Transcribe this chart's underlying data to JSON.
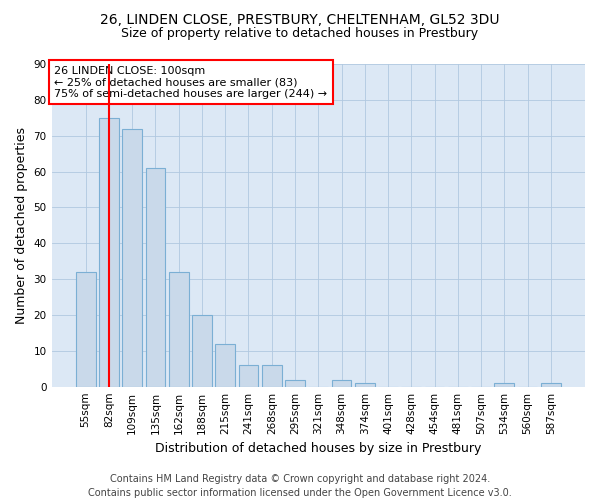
{
  "title_line1": "26, LINDEN CLOSE, PRESTBURY, CHELTENHAM, GL52 3DU",
  "title_line2": "Size of property relative to detached houses in Prestbury",
  "xlabel": "Distribution of detached houses by size in Prestbury",
  "ylabel": "Number of detached properties",
  "categories": [
    "55sqm",
    "82sqm",
    "109sqm",
    "135sqm",
    "162sqm",
    "188sqm",
    "215sqm",
    "241sqm",
    "268sqm",
    "295sqm",
    "321sqm",
    "348sqm",
    "374sqm",
    "401sqm",
    "428sqm",
    "454sqm",
    "481sqm",
    "507sqm",
    "534sqm",
    "560sqm",
    "587sqm"
  ],
  "values": [
    32,
    75,
    72,
    61,
    32,
    20,
    12,
    6,
    6,
    2,
    0,
    2,
    1,
    0,
    0,
    0,
    0,
    0,
    1,
    0,
    1
  ],
  "bar_color": "#c9d9ea",
  "bar_edge_color": "#7bafd4",
  "annotation_box_text": "26 LINDEN CLOSE: 100sqm\n← 25% of detached houses are smaller (83)\n75% of semi-detached houses are larger (244) →",
  "annotation_box_edge_color": "red",
  "annotation_box_bg_color": "white",
  "vline_x_index": 1,
  "vline_color": "red",
  "ylim": [
    0,
    90
  ],
  "yticks": [
    0,
    10,
    20,
    30,
    40,
    50,
    60,
    70,
    80,
    90
  ],
  "footnote_line1": "Contains HM Land Registry data © Crown copyright and database right 2024.",
  "footnote_line2": "Contains public sector information licensed under the Open Government Licence v3.0.",
  "fig_bg_color": "#ffffff",
  "plot_bg_color": "#dce8f5",
  "grid_color": "#b0c8e0",
  "title_fontsize": 10,
  "subtitle_fontsize": 9,
  "axis_label_fontsize": 9,
  "tick_fontsize": 7.5,
  "annotation_fontsize": 8,
  "footnote_fontsize": 7
}
